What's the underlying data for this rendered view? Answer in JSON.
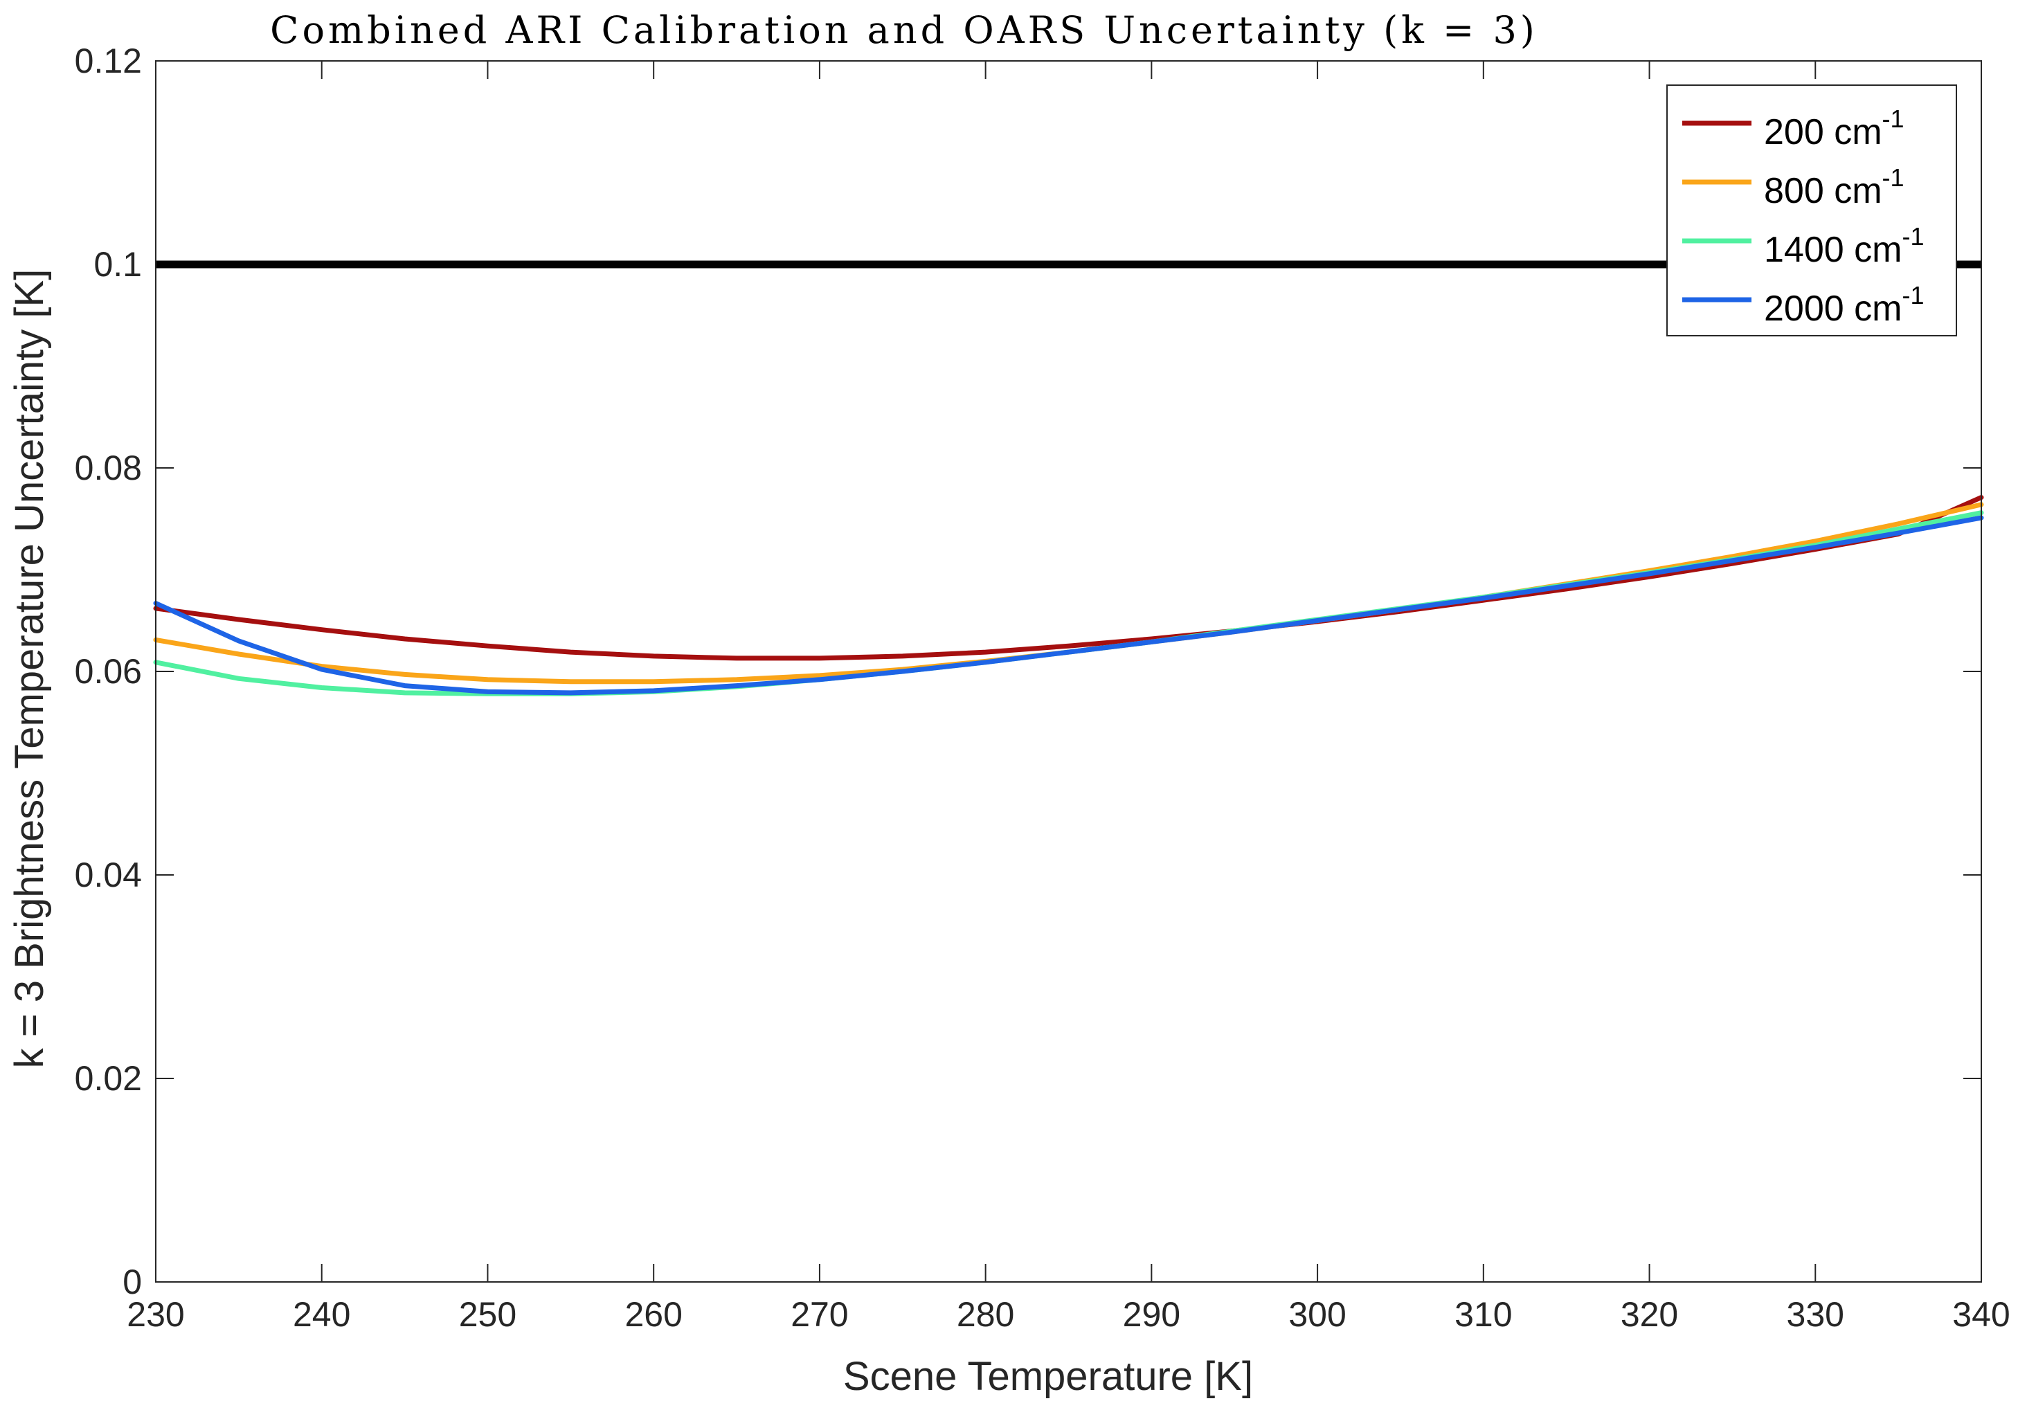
{
  "chart_data": {
    "type": "line",
    "title": "Combined ARI Calibration and OARS Uncertainty (k = 3)",
    "xlabel": "Scene Temperature [K]",
    "ylabel": "k = 3 Brightness Temperature Uncertainty [K]",
    "xlim": [
      230,
      340
    ],
    "ylim": [
      0,
      0.12
    ],
    "xticks": [
      230,
      240,
      250,
      260,
      270,
      280,
      290,
      300,
      310,
      320,
      330,
      340
    ],
    "yticks": [
      0,
      0.02,
      0.04,
      0.06,
      0.08,
      0.1,
      0.12
    ],
    "ytick_labels": [
      "0",
      "0.02",
      "0.04",
      "0.06",
      "0.08",
      "0.1",
      "0.12"
    ],
    "grid": false,
    "legend_position": "top-right",
    "threshold_line": {
      "y": 0.1,
      "color": "#000000"
    },
    "x": [
      230,
      235,
      240,
      245,
      250,
      255,
      260,
      265,
      270,
      275,
      280,
      285,
      290,
      295,
      300,
      305,
      310,
      315,
      320,
      325,
      330,
      335,
      340
    ],
    "series": [
      {
        "name": "200 cm",
        "superscript": "-1",
        "color": "#A50F0F",
        "values": [
          0.0662,
          0.0651,
          0.0641,
          0.0632,
          0.0625,
          0.0619,
          0.0615,
          0.0613,
          0.0613,
          0.0615,
          0.0619,
          0.0625,
          0.0632,
          0.064,
          0.0649,
          0.0659,
          0.067,
          0.0681,
          0.0693,
          0.0706,
          0.072,
          0.0735,
          0.0771
        ]
      },
      {
        "name": "800 cm",
        "superscript": "-1",
        "color": "#FAA519",
        "values": [
          0.0631,
          0.0617,
          0.0605,
          0.0597,
          0.0592,
          0.059,
          0.059,
          0.0592,
          0.0596,
          0.0602,
          0.061,
          0.0619,
          0.0629,
          0.0639,
          0.065,
          0.0661,
          0.0673,
          0.0686,
          0.0699,
          0.0713,
          0.0728,
          0.0745,
          0.0764
        ]
      },
      {
        "name": "1400 cm",
        "superscript": "-1",
        "color": "#50F0A0",
        "values": [
          0.0609,
          0.0593,
          0.0584,
          0.0579,
          0.0578,
          0.0578,
          0.058,
          0.0585,
          0.0592,
          0.06,
          0.0609,
          0.0619,
          0.0629,
          0.064,
          0.0651,
          0.0662,
          0.0673,
          0.0685,
          0.0697,
          0.071,
          0.0724,
          0.074,
          0.0756
        ]
      },
      {
        "name": "2000 cm",
        "superscript": "-1",
        "color": "#1E64E6",
        "values": [
          0.0667,
          0.063,
          0.0602,
          0.0586,
          0.058,
          0.0579,
          0.0581,
          0.0586,
          0.0592,
          0.06,
          0.0609,
          0.0619,
          0.0629,
          0.0639,
          0.065,
          0.0661,
          0.0672,
          0.0684,
          0.0696,
          0.0709,
          0.0722,
          0.0736,
          0.0751
        ]
      }
    ]
  }
}
